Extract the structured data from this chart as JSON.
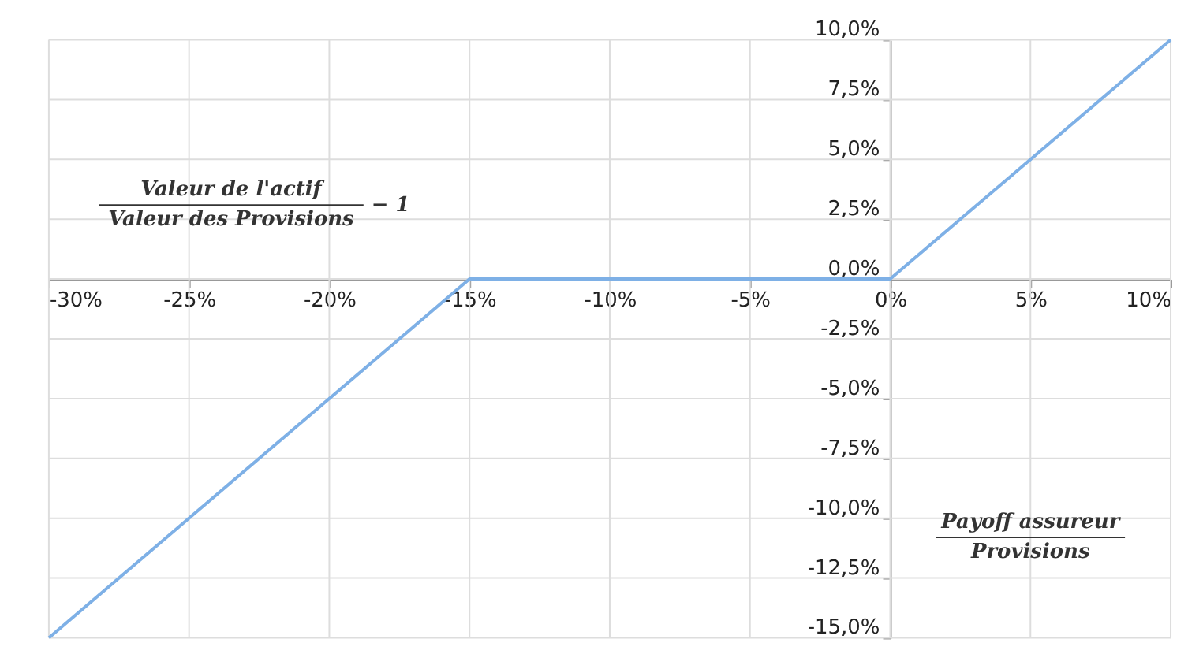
{
  "chart_data": {
    "type": "line",
    "annotations": [
      "Valeur de l'actif",
      "Valeur des Provisions",
      "− 1",
      "Payoff assureur",
      "Provisions"
    ],
    "x": [
      -30,
      -15,
      0,
      10
    ],
    "series": [
      {
        "color": "#7eb0e6",
        "values": [
          -15,
          0,
          0,
          10
        ]
      }
    ],
    "xlim": [
      -30,
      10
    ],
    "ylim": [
      -15,
      10
    ],
    "xticks": [
      {
        "value": -30,
        "label": "-30%"
      },
      {
        "value": -25,
        "label": "-25%"
      },
      {
        "value": -20,
        "label": "-20%"
      },
      {
        "value": -15,
        "label": "-15%"
      },
      {
        "value": -10,
        "label": "-10%"
      },
      {
        "value": -5,
        "label": "-5%"
      },
      {
        "value": 0,
        "label": "0%"
      },
      {
        "value": 5,
        "label": "5%"
      },
      {
        "value": 10,
        "label": "10%"
      }
    ],
    "yticks": [
      {
        "value": -15,
        "label": "-15,0%"
      },
      {
        "value": -12.5,
        "label": "-12,5%"
      },
      {
        "value": -10,
        "label": "-10,0%"
      },
      {
        "value": -7.5,
        "label": "-7,5%"
      },
      {
        "value": -5,
        "label": "-5,0%"
      },
      {
        "value": -2.5,
        "label": "-2,5%"
      },
      {
        "value": 0,
        "label": "0,0%"
      },
      {
        "value": 2.5,
        "label": "2,5%"
      },
      {
        "value": 5,
        "label": "5,0%"
      },
      {
        "value": 7.5,
        "label": "7,5%"
      },
      {
        "value": 10,
        "label": "10,0%"
      }
    ],
    "grid": true,
    "marker": "none",
    "line_style": "solid"
  }
}
